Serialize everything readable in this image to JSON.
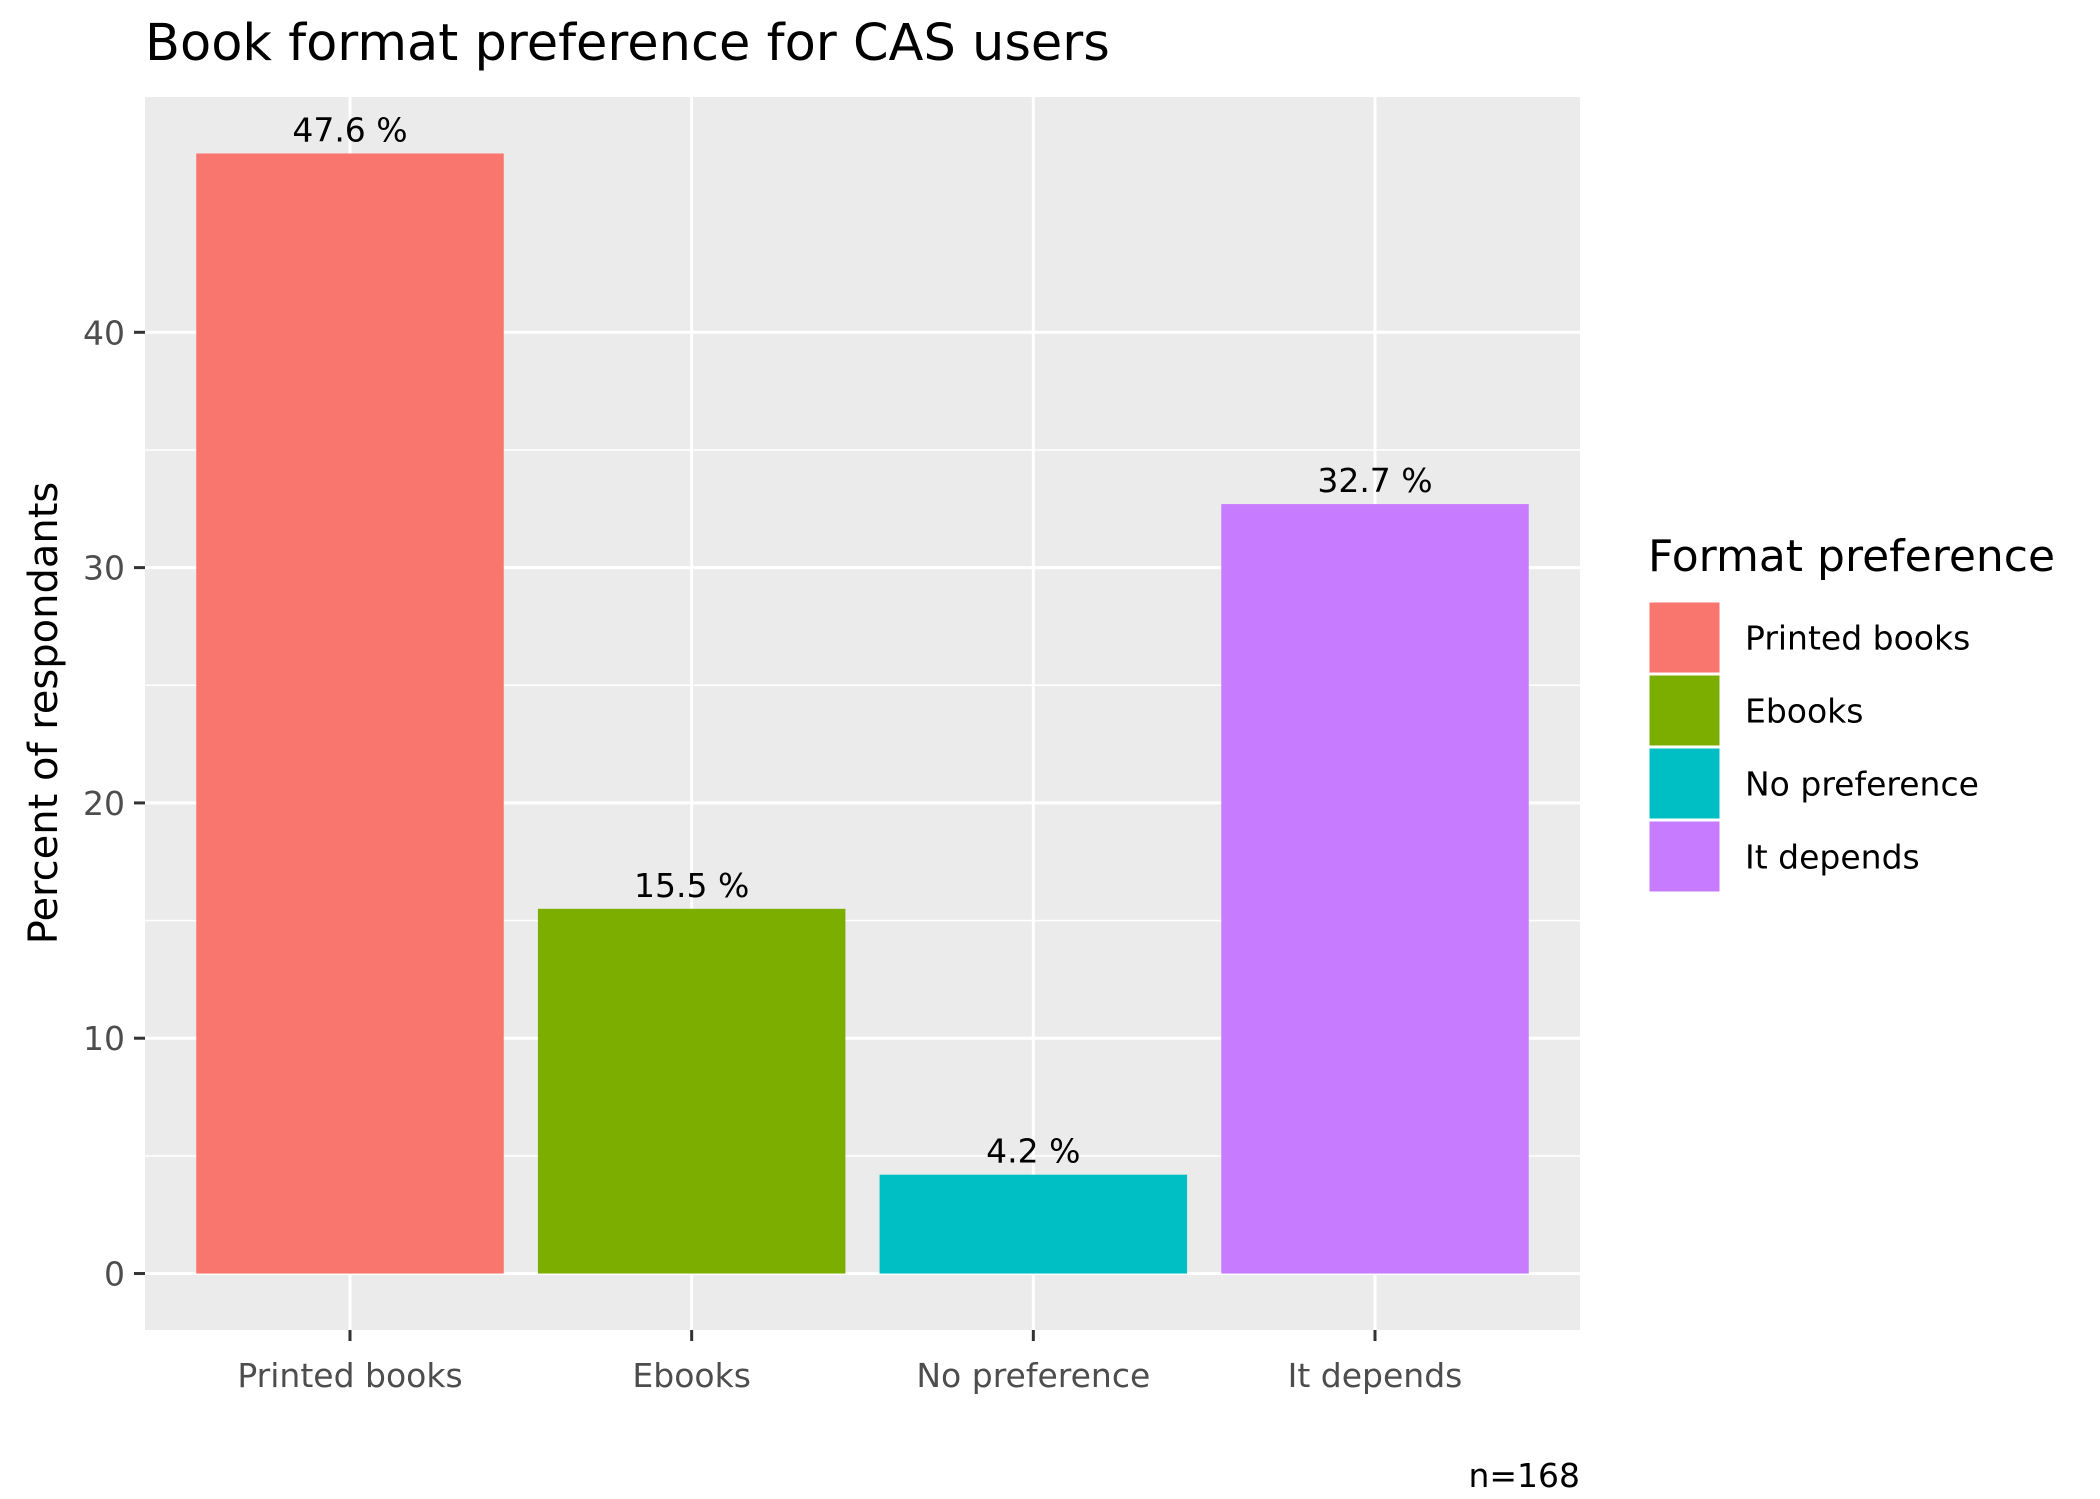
{
  "chart_data": {
    "type": "bar",
    "title": "Book format preference for CAS users",
    "xlabel": "",
    "ylabel": "Percent of respondants",
    "categories": [
      "Printed books",
      "Ebooks",
      "No preference",
      "It depends"
    ],
    "values": [
      47.6,
      15.5,
      4.2,
      32.7
    ],
    "data_labels": [
      "47.6 %",
      "15.5 %",
      "4.2 %",
      "32.7 %"
    ],
    "colors": [
      "#F8766D",
      "#7CAE00",
      "#00BFC4",
      "#C77CFF"
    ],
    "ylim": [
      -2.4,
      50
    ],
    "yticks": [
      0,
      10,
      20,
      30,
      40
    ],
    "ytick_labels": [
      "0",
      "10",
      "20",
      "30",
      "40"
    ],
    "grid": true,
    "panel_background": "#EBEBEB",
    "legend": {
      "title": "Format preference",
      "position": "right",
      "entries": [
        "Printed books",
        "Ebooks",
        "No preference",
        "It depends"
      ]
    },
    "caption": "n=168"
  }
}
